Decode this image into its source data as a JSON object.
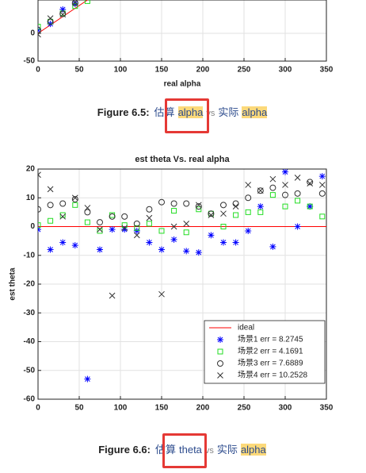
{
  "chart_data": [
    {
      "type": "scatter",
      "xlabel": "real alpha",
      "xlim": [
        0,
        350
      ],
      "xticks": [
        0,
        50,
        100,
        150,
        200,
        250,
        300,
        350
      ],
      "ylim": [
        -50,
        60
      ],
      "yticks": [
        -50,
        0
      ],
      "grid": true,
      "series": [
        {
          "style": "line",
          "color": "#ff0000",
          "x": [
            0,
            60
          ],
          "values": [
            0,
            60
          ]
        },
        {
          "marker": "*",
          "color": "#0000ff",
          "x": [
            0,
            15,
            30,
            45
          ],
          "values": [
            6,
            17,
            43,
            53
          ]
        },
        {
          "marker": "s",
          "color": "#22dd22",
          "x": [
            0,
            15,
            30,
            45,
            60
          ],
          "values": [
            12,
            21,
            36,
            49,
            58
          ]
        },
        {
          "marker": "o",
          "color": "#333333",
          "x": [
            0,
            15,
            30,
            45
          ],
          "values": [
            6,
            21,
            35,
            55
          ]
        },
        {
          "marker": "x",
          "color": "#333333",
          "x": [
            0,
            15,
            30,
            45
          ],
          "values": [
            -2,
            27,
            34,
            56
          ]
        }
      ]
    },
    {
      "type": "scatter",
      "title": "est theta Vs. real alpha",
      "ylabel": "est theta",
      "xlim": [
        0,
        350
      ],
      "xticks": [
        0,
        50,
        100,
        150,
        200,
        250,
        300,
        350
      ],
      "ylim": [
        -60,
        20
      ],
      "yticks": [
        -60,
        -50,
        -40,
        -30,
        -20,
        -10,
        0,
        10,
        20
      ],
      "grid": true,
      "legend": "lower right",
      "series": [
        {
          "name": "ideal",
          "style": "line",
          "color": "#ff0000",
          "x": [
            0,
            350
          ],
          "values": [
            0,
            0
          ]
        },
        {
          "name": "场景1 err = 8.2745",
          "marker": "*",
          "color": "#0000ff",
          "x": [
            0,
            15,
            30,
            45,
            60,
            75,
            90,
            105,
            120,
            135,
            150,
            165,
            180,
            195,
            210,
            225,
            240,
            255,
            270,
            285,
            300,
            315,
            330,
            345
          ],
          "values": [
            -1,
            -8,
            -5.5,
            -6.5,
            -53,
            -8,
            -1,
            -1,
            -1.5,
            -5.5,
            -8,
            -4.5,
            -8.5,
            -9,
            -3,
            -5.5,
            -5.5,
            -1.5,
            7,
            -7,
            19,
            0,
            7,
            17.5
          ]
        },
        {
          "name": "场景2 err = 4.1691",
          "marker": "s",
          "color": "#22dd22",
          "x": [
            0,
            15,
            30,
            45,
            60,
            75,
            90,
            105,
            120,
            135,
            150,
            165,
            180,
            195,
            210,
            225,
            240,
            255,
            270,
            285,
            300,
            315,
            330,
            345
          ],
          "values": [
            0.5,
            2,
            4,
            7.5,
            1.5,
            -1.5,
            4,
            0.5,
            -0.5,
            1,
            -1.5,
            5.5,
            -2,
            6,
            4.5,
            0,
            4,
            5,
            5,
            11,
            7,
            9,
            7,
            3.5
          ]
        },
        {
          "name": "场景3 err = 7.6889",
          "marker": "o",
          "color": "#333333",
          "x": [
            0,
            15,
            30,
            45,
            60,
            75,
            90,
            105,
            120,
            135,
            150,
            165,
            180,
            195,
            210,
            225,
            240,
            255,
            270,
            285,
            300,
            315,
            330,
            345
          ],
          "values": [
            6,
            7.5,
            8,
            9.5,
            5,
            1.5,
            3.5,
            3.5,
            1,
            6,
            8.5,
            8,
            8,
            7,
            4.5,
            7.5,
            8,
            10,
            12.5,
            13.5,
            11,
            11.5,
            15.5,
            11.5
          ]
        },
        {
          "name": "场景4 err = 10.2528",
          "marker": "x",
          "color": "#333333",
          "x": [
            0,
            15,
            30,
            45,
            60,
            75,
            90,
            105,
            120,
            135,
            150,
            165,
            180,
            195,
            210,
            225,
            240,
            255,
            270,
            285,
            300,
            315,
            330,
            345
          ],
          "values": [
            18,
            13,
            3.5,
            10,
            6.5,
            -1,
            -24,
            -0.5,
            -3,
            3,
            -23.5,
            0,
            1,
            7.5,
            4,
            4.5,
            7,
            14.5,
            12.5,
            16.5,
            14.5,
            17,
            15,
            14.5
          ]
        }
      ]
    }
  ],
  "figures": [
    {
      "label": "Figure 6.5:",
      "words": [
        "估算",
        "alpha",
        "vs",
        "实际",
        "alpha"
      ]
    },
    {
      "label": "Figure 6.6:",
      "words": [
        "估算",
        "theta",
        "vs",
        "实际",
        "alpha"
      ]
    }
  ]
}
